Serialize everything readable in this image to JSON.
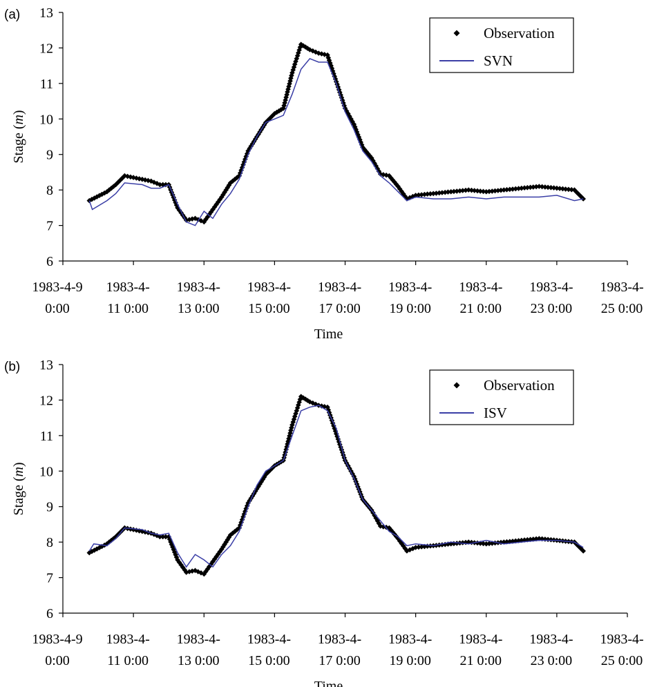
{
  "chart_data": [
    {
      "type": "line",
      "panel_label": "(a)",
      "xlabel": "Time",
      "ylabel_prefix": "Stage (",
      "ylabel_unit": "m",
      "ylabel_suffix": ")",
      "ylim": [
        6,
        13
      ],
      "xlim": [
        "1983-04-09 00:00",
        "1983-04-25 00:00"
      ],
      "y_ticks": [
        "6",
        "7",
        "8",
        "9",
        "10",
        "11",
        "12",
        "13"
      ],
      "x_ticks": [
        {
          "line1": "1983-4-9",
          "line2": "0:00"
        },
        {
          "line1": "1983-4-",
          "line2": "11 0:00"
        },
        {
          "line1": "1983-4-",
          "line2": "13 0:00"
        },
        {
          "line1": "1983-4-",
          "line2": "15 0:00"
        },
        {
          "line1": "1983-4-",
          "line2": "17 0:00"
        },
        {
          "line1": "1983-4-",
          "line2": "19 0:00"
        },
        {
          "line1": "1983-4-",
          "line2": "21 0:00"
        },
        {
          "line1": "1983-4-",
          "line2": "23 0:00"
        },
        {
          "line1": "1983-4-",
          "line2": "25 0:00"
        }
      ],
      "grid": false,
      "legend": "top-right",
      "series": [
        {
          "name": "Observation",
          "style": "markers",
          "color": "#000000",
          "x": [
            "1983-04-09 18:00",
            "1983-04-10 06:00",
            "1983-04-10 12:00",
            "1983-04-10 18:00",
            "1983-04-11 06:00",
            "1983-04-11 12:00",
            "1983-04-11 18:00",
            "1983-04-12 00:00",
            "1983-04-12 06:00",
            "1983-04-12 12:00",
            "1983-04-12 18:00",
            "1983-04-13 00:00",
            "1983-04-13 06:00",
            "1983-04-13 12:00",
            "1983-04-13 18:00",
            "1983-04-14 00:00",
            "1983-04-14 06:00",
            "1983-04-14 12:00",
            "1983-04-14 18:00",
            "1983-04-15 00:00",
            "1983-04-15 06:00",
            "1983-04-15 12:00",
            "1983-04-15 18:00",
            "1983-04-16 00:00",
            "1983-04-16 06:00",
            "1983-04-16 12:00",
            "1983-04-16 18:00",
            "1983-04-17 00:00",
            "1983-04-17 06:00",
            "1983-04-17 12:00",
            "1983-04-17 18:00",
            "1983-04-18 00:00",
            "1983-04-18 06:00",
            "1983-04-18 12:00",
            "1983-04-18 18:00",
            "1983-04-19 00:00",
            "1983-04-19 12:00",
            "1983-04-20 00:00",
            "1983-04-20 12:00",
            "1983-04-21 00:00",
            "1983-04-21 12:00",
            "1983-04-22 00:00",
            "1983-04-22 12:00",
            "1983-04-23 00:00",
            "1983-04-23 12:00",
            "1983-04-23 18:00"
          ],
          "y": [
            7.7,
            7.95,
            8.15,
            8.4,
            8.3,
            8.25,
            8.15,
            8.15,
            7.5,
            7.15,
            7.2,
            7.1,
            7.45,
            7.8,
            8.2,
            8.4,
            9.1,
            9.5,
            9.9,
            10.15,
            10.3,
            11.3,
            12.1,
            11.95,
            11.85,
            11.8,
            11.05,
            10.3,
            9.85,
            9.2,
            8.9,
            8.45,
            8.4,
            8.1,
            7.75,
            7.85,
            7.9,
            7.95,
            8.0,
            7.95,
            8.0,
            8.05,
            8.1,
            8.05,
            8.0,
            7.75
          ]
        },
        {
          "name": "SVN",
          "style": "line",
          "color": "#3a3ea6",
          "x": [
            "1983-04-09 18:00",
            "1983-04-09 20:00",
            "1983-04-10 06:00",
            "1983-04-10 12:00",
            "1983-04-10 18:00",
            "1983-04-11 06:00",
            "1983-04-11 12:00",
            "1983-04-11 18:00",
            "1983-04-12 00:00",
            "1983-04-12 06:00",
            "1983-04-12 12:00",
            "1983-04-12 18:00",
            "1983-04-13 00:00",
            "1983-04-13 06:00",
            "1983-04-13 12:00",
            "1983-04-13 18:00",
            "1983-04-14 00:00",
            "1983-04-14 06:00",
            "1983-04-14 12:00",
            "1983-04-14 18:00",
            "1983-04-15 00:00",
            "1983-04-15 06:00",
            "1983-04-15 12:00",
            "1983-04-15 18:00",
            "1983-04-16 00:00",
            "1983-04-16 06:00",
            "1983-04-16 12:00",
            "1983-04-16 18:00",
            "1983-04-17 00:00",
            "1983-04-17 06:00",
            "1983-04-17 12:00",
            "1983-04-17 18:00",
            "1983-04-18 00:00",
            "1983-04-18 06:00",
            "1983-04-18 12:00",
            "1983-04-18 18:00",
            "1983-04-19 00:00",
            "1983-04-19 12:00",
            "1983-04-20 00:00",
            "1983-04-20 12:00",
            "1983-04-21 00:00",
            "1983-04-21 12:00",
            "1983-04-22 00:00",
            "1983-04-22 12:00",
            "1983-04-23 00:00",
            "1983-04-23 12:00",
            "1983-04-23 18:00"
          ],
          "y": [
            7.7,
            7.45,
            7.7,
            7.9,
            8.2,
            8.15,
            8.05,
            8.05,
            8.15,
            7.6,
            7.1,
            7.0,
            7.4,
            7.2,
            7.6,
            7.9,
            8.3,
            9.0,
            9.5,
            9.9,
            10.0,
            10.1,
            10.7,
            11.4,
            11.7,
            11.6,
            11.6,
            11.0,
            10.2,
            9.7,
            9.1,
            8.8,
            8.4,
            8.2,
            7.95,
            7.7,
            7.8,
            7.75,
            7.75,
            7.8,
            7.75,
            7.8,
            7.8,
            7.8,
            7.85,
            7.7,
            7.75
          ]
        }
      ]
    },
    {
      "type": "line",
      "panel_label": "(b)",
      "xlabel": "Time",
      "ylabel_prefix": "Stage (",
      "ylabel_unit": "m",
      "ylabel_suffix": ")",
      "ylim": [
        6,
        13
      ],
      "xlim": [
        "1983-04-09 00:00",
        "1983-04-25 00:00"
      ],
      "y_ticks": [
        "6",
        "7",
        "8",
        "9",
        "10",
        "11",
        "12",
        "13"
      ],
      "x_ticks": [
        {
          "line1": "1983-4-9",
          "line2": "0:00"
        },
        {
          "line1": "1983-4-",
          "line2": "11 0:00"
        },
        {
          "line1": "1983-4-",
          "line2": "13 0:00"
        },
        {
          "line1": "1983-4-",
          "line2": "15 0:00"
        },
        {
          "line1": "1983-4-",
          "line2": "17 0:00"
        },
        {
          "line1": "1983-4-",
          "line2": "19 0:00"
        },
        {
          "line1": "1983-4-",
          "line2": "21 0:00"
        },
        {
          "line1": "1983-4-",
          "line2": "23 0:00"
        },
        {
          "line1": "1983-4-",
          "line2": "25 0:00"
        }
      ],
      "grid": false,
      "legend": "top-right",
      "series": [
        {
          "name": "Observation",
          "style": "markers",
          "color": "#000000",
          "x": [
            "1983-04-09 18:00",
            "1983-04-10 06:00",
            "1983-04-10 12:00",
            "1983-04-10 18:00",
            "1983-04-11 06:00",
            "1983-04-11 12:00",
            "1983-04-11 18:00",
            "1983-04-12 00:00",
            "1983-04-12 06:00",
            "1983-04-12 12:00",
            "1983-04-12 18:00",
            "1983-04-13 00:00",
            "1983-04-13 06:00",
            "1983-04-13 12:00",
            "1983-04-13 18:00",
            "1983-04-14 00:00",
            "1983-04-14 06:00",
            "1983-04-14 12:00",
            "1983-04-14 18:00",
            "1983-04-15 00:00",
            "1983-04-15 06:00",
            "1983-04-15 12:00",
            "1983-04-15 18:00",
            "1983-04-16 00:00",
            "1983-04-16 06:00",
            "1983-04-16 12:00",
            "1983-04-16 18:00",
            "1983-04-17 00:00",
            "1983-04-17 06:00",
            "1983-04-17 12:00",
            "1983-04-17 18:00",
            "1983-04-18 00:00",
            "1983-04-18 06:00",
            "1983-04-18 12:00",
            "1983-04-18 18:00",
            "1983-04-19 00:00",
            "1983-04-19 12:00",
            "1983-04-20 00:00",
            "1983-04-20 12:00",
            "1983-04-21 00:00",
            "1983-04-21 12:00",
            "1983-04-22 00:00",
            "1983-04-22 12:00",
            "1983-04-23 00:00",
            "1983-04-23 12:00",
            "1983-04-23 18:00"
          ],
          "y": [
            7.7,
            7.95,
            8.15,
            8.4,
            8.3,
            8.25,
            8.15,
            8.15,
            7.5,
            7.15,
            7.2,
            7.1,
            7.45,
            7.8,
            8.2,
            8.4,
            9.1,
            9.5,
            9.9,
            10.15,
            10.3,
            11.3,
            12.1,
            11.95,
            11.85,
            11.8,
            11.05,
            10.3,
            9.85,
            9.2,
            8.9,
            8.45,
            8.4,
            8.1,
            7.75,
            7.85,
            7.9,
            7.95,
            8.0,
            7.95,
            8.0,
            8.05,
            8.1,
            8.05,
            8.0,
            7.75
          ]
        },
        {
          "name": "ISV",
          "style": "line",
          "color": "#3a3ea6",
          "x": [
            "1983-04-09 18:00",
            "1983-04-09 21:00",
            "1983-04-10 06:00",
            "1983-04-10 12:00",
            "1983-04-10 18:00",
            "1983-04-11 06:00",
            "1983-04-11 12:00",
            "1983-04-11 18:00",
            "1983-04-12 00:00",
            "1983-04-12 06:00",
            "1983-04-12 12:00",
            "1983-04-12 18:00",
            "1983-04-13 00:00",
            "1983-04-13 06:00",
            "1983-04-13 12:00",
            "1983-04-13 18:00",
            "1983-04-14 00:00",
            "1983-04-14 06:00",
            "1983-04-14 12:00",
            "1983-04-14 18:00",
            "1983-04-15 00:00",
            "1983-04-15 06:00",
            "1983-04-15 12:00",
            "1983-04-15 18:00",
            "1983-04-16 00:00",
            "1983-04-16 06:00",
            "1983-04-16 12:00",
            "1983-04-16 18:00",
            "1983-04-17 00:00",
            "1983-04-17 06:00",
            "1983-04-17 12:00",
            "1983-04-17 18:00",
            "1983-04-18 00:00",
            "1983-04-18 06:00",
            "1983-04-18 12:00",
            "1983-04-18 18:00",
            "1983-04-19 00:00",
            "1983-04-19 12:00",
            "1983-04-20 00:00",
            "1983-04-20 12:00",
            "1983-04-21 00:00",
            "1983-04-21 12:00",
            "1983-04-22 00:00",
            "1983-04-22 12:00",
            "1983-04-23 00:00",
            "1983-04-23 12:00",
            "1983-04-23 18:00"
          ],
          "y": [
            7.75,
            7.95,
            7.9,
            8.1,
            8.4,
            8.35,
            8.25,
            8.2,
            8.25,
            7.7,
            7.3,
            7.65,
            7.5,
            7.3,
            7.65,
            7.9,
            8.3,
            9.0,
            9.6,
            10.0,
            10.15,
            10.3,
            11.0,
            11.7,
            11.8,
            11.85,
            11.7,
            11.2,
            10.3,
            9.8,
            9.2,
            8.9,
            8.6,
            8.3,
            8.15,
            7.9,
            7.95,
            7.9,
            8.0,
            7.95,
            8.05,
            7.95,
            8.0,
            8.05,
            8.05,
            8.0,
            7.85
          ]
        }
      ]
    }
  ]
}
